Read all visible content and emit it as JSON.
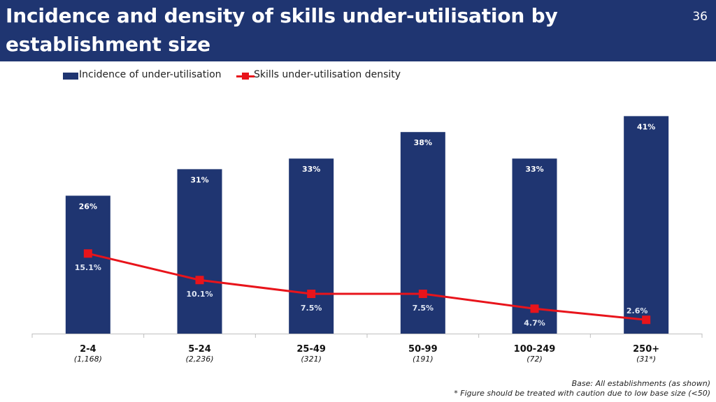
{
  "header": {
    "title": "Incidence and density of skills under-utilisation by establishment size",
    "page_number": "36"
  },
  "legend": {
    "bar_label": "Incidence of under-utilisation",
    "line_label": "Skills under-utilisation density"
  },
  "colors": {
    "header_bg": "#1f3571",
    "bar": "#1f3571",
    "line": "#e8141b",
    "bar_label": "#ffffff",
    "line_label": "#dfe6f3"
  },
  "chart_data": {
    "type": "bar",
    "categories": [
      "2-4",
      "5-24",
      "25-49",
      "50-99",
      "100-249",
      "250+"
    ],
    "base_sizes": [
      "(1,168)",
      "(2,236)",
      "(321)",
      "(191)",
      "(72)",
      "(31*)"
    ],
    "series": [
      {
        "name": "Incidence of under-utilisation",
        "type": "bar",
        "values": [
          26,
          31,
          33,
          38,
          33,
          41
        ],
        "labels": [
          "26%",
          "31%",
          "33%",
          "38%",
          "33%",
          "41%"
        ]
      },
      {
        "name": "Skills under-utilisation density",
        "type": "line",
        "values": [
          15.1,
          10.1,
          7.5,
          7.5,
          4.7,
          2.6
        ],
        "labels": [
          "15.1%",
          "10.1%",
          "7.5%",
          "7.5%",
          "4.7%",
          "2.6%"
        ]
      }
    ],
    "ylim": [
      0,
      41
    ],
    "grid": false,
    "legend_position": "top-left"
  },
  "footnotes": {
    "base": "Base: All establishments (as shown)",
    "caution": "* Figure should be treated with caution due to low base size (<50)"
  }
}
